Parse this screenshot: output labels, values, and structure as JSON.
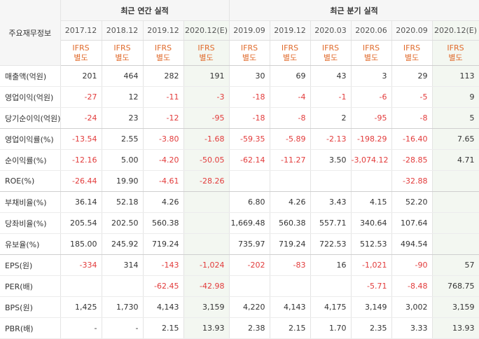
{
  "header": {
    "row_label": "주요재무정보",
    "annual_group": "최근 연간 실적",
    "quarter_group": "최근 분기 실적"
  },
  "columns": [
    {
      "period": "2017.12",
      "std1": "IFRS",
      "std2": "별도",
      "estimate": false
    },
    {
      "period": "2018.12",
      "std1": "IFRS",
      "std2": "별도",
      "estimate": false
    },
    {
      "period": "2019.12",
      "std1": "IFRS",
      "std2": "별도",
      "estimate": false
    },
    {
      "period": "2020.12(E)",
      "std1": "IFRS",
      "std2": "별도",
      "estimate": true
    },
    {
      "period": "2019.09",
      "std1": "IFRS",
      "std2": "별도",
      "estimate": false
    },
    {
      "period": "2019.12",
      "std1": "IFRS",
      "std2": "별도",
      "estimate": false
    },
    {
      "period": "2020.03",
      "std1": "IFRS",
      "std2": "별도",
      "estimate": false
    },
    {
      "period": "2020.06",
      "std1": "IFRS",
      "std2": "별도",
      "estimate": false
    },
    {
      "period": "2020.09",
      "std1": "IFRS",
      "std2": "별도",
      "estimate": false
    },
    {
      "period": "2020.12(E)",
      "std1": "IFRS",
      "std2": "별도",
      "estimate": true
    }
  ],
  "rows": [
    {
      "label": "매출액(억원)",
      "values": [
        "201",
        "464",
        "282",
        "191",
        "30",
        "69",
        "43",
        "3",
        "29",
        "113"
      ],
      "group_end": false
    },
    {
      "label": "영업이익(억원)",
      "values": [
        "-27",
        "12",
        "-11",
        "-3",
        "-18",
        "-4",
        "-1",
        "-6",
        "-5",
        "9"
      ],
      "group_end": false
    },
    {
      "label": "당기순이익(억원)",
      "values": [
        "-24",
        "23",
        "-12",
        "-95",
        "-18",
        "-8",
        "2",
        "-95",
        "-8",
        "5"
      ],
      "group_end": true
    },
    {
      "label": "영업이익률(%)",
      "values": [
        "-13.54",
        "2.55",
        "-3.80",
        "-1.68",
        "-59.35",
        "-5.89",
        "-2.13",
        "-198.29",
        "-16.40",
        "7.65"
      ],
      "group_end": false
    },
    {
      "label": "순이익률(%)",
      "values": [
        "-12.16",
        "5.00",
        "-4.20",
        "-50.05",
        "-62.14",
        "-11.27",
        "3.50",
        "-3,074.12",
        "-28.85",
        "4.71"
      ],
      "group_end": false
    },
    {
      "label": "ROE(%)",
      "values": [
        "-26.44",
        "19.90",
        "-4.61",
        "-28.26",
        "",
        "",
        "",
        "",
        "-32.88",
        ""
      ],
      "group_end": true
    },
    {
      "label": "부채비율(%)",
      "values": [
        "36.14",
        "52.18",
        "4.26",
        "",
        "6.80",
        "4.26",
        "3.43",
        "4.15",
        "52.20",
        ""
      ],
      "group_end": false
    },
    {
      "label": "당좌비율(%)",
      "values": [
        "205.54",
        "202.50",
        "560.38",
        "",
        "1,669.48",
        "560.38",
        "557.71",
        "340.64",
        "107.64",
        ""
      ],
      "group_end": false
    },
    {
      "label": "유보율(%)",
      "values": [
        "185.00",
        "245.92",
        "719.24",
        "",
        "735.97",
        "719.24",
        "722.53",
        "512.53",
        "494.54",
        ""
      ],
      "group_end": true
    },
    {
      "label": "EPS(원)",
      "values": [
        "-334",
        "314",
        "-143",
        "-1,024",
        "-202",
        "-83",
        "16",
        "-1,021",
        "-90",
        "57"
      ],
      "group_end": false
    },
    {
      "label": "PER(배)",
      "values": [
        "",
        "",
        "-62.45",
        "-42.98",
        "",
        "",
        "",
        "-5.71",
        "-8.48",
        "768.75"
      ],
      "group_end": false
    },
    {
      "label": "BPS(원)",
      "values": [
        "1,425",
        "1,730",
        "4,143",
        "3,159",
        "4,220",
        "4,143",
        "4,175",
        "3,149",
        "3,002",
        "3,159"
      ],
      "group_end": false
    },
    {
      "label": "PBR(배)",
      "values": [
        "-",
        "-",
        "2.15",
        "13.93",
        "2.38",
        "2.15",
        "1.70",
        "2.35",
        "3.33",
        "13.93"
      ],
      "group_end": false
    }
  ]
}
